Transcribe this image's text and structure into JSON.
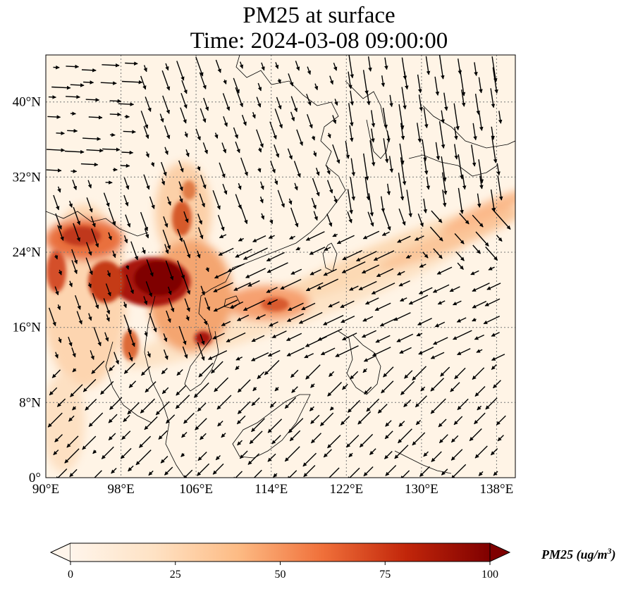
{
  "title": {
    "line1": "PM25 at surface",
    "line2": "Time: 2024-03-08 09:00:00"
  },
  "map": {
    "lon_range": [
      90,
      140
    ],
    "lat_range": [
      0,
      45
    ],
    "lon_ticks": [
      90,
      98,
      106,
      114,
      122,
      130,
      138
    ],
    "lon_tick_labels": [
      "90°E",
      "98°E",
      "106°E",
      "114°E",
      "122°E",
      "130°E",
      "138°E"
    ],
    "lat_ticks": [
      0,
      8,
      16,
      24,
      32,
      40
    ],
    "lat_tick_labels": [
      "0°",
      "8°N",
      "16°N",
      "24°N",
      "32°N",
      "40°N"
    ],
    "gridlines": true,
    "colormap": [
      "#fff5eb",
      "#fdd3a8",
      "#fd9a50",
      "#e3551a",
      "#c2260a",
      "#7f0000"
    ]
  },
  "colorbar": {
    "min": 0,
    "max": 100,
    "ticks": [
      0,
      25,
      50,
      75,
      100
    ],
    "tick_labels": [
      "0",
      "25",
      "50",
      "75",
      "100"
    ],
    "label_main": "PM25 (ug/m",
    "label_sup": "3",
    "label_end": ")",
    "extend": "both"
  }
}
